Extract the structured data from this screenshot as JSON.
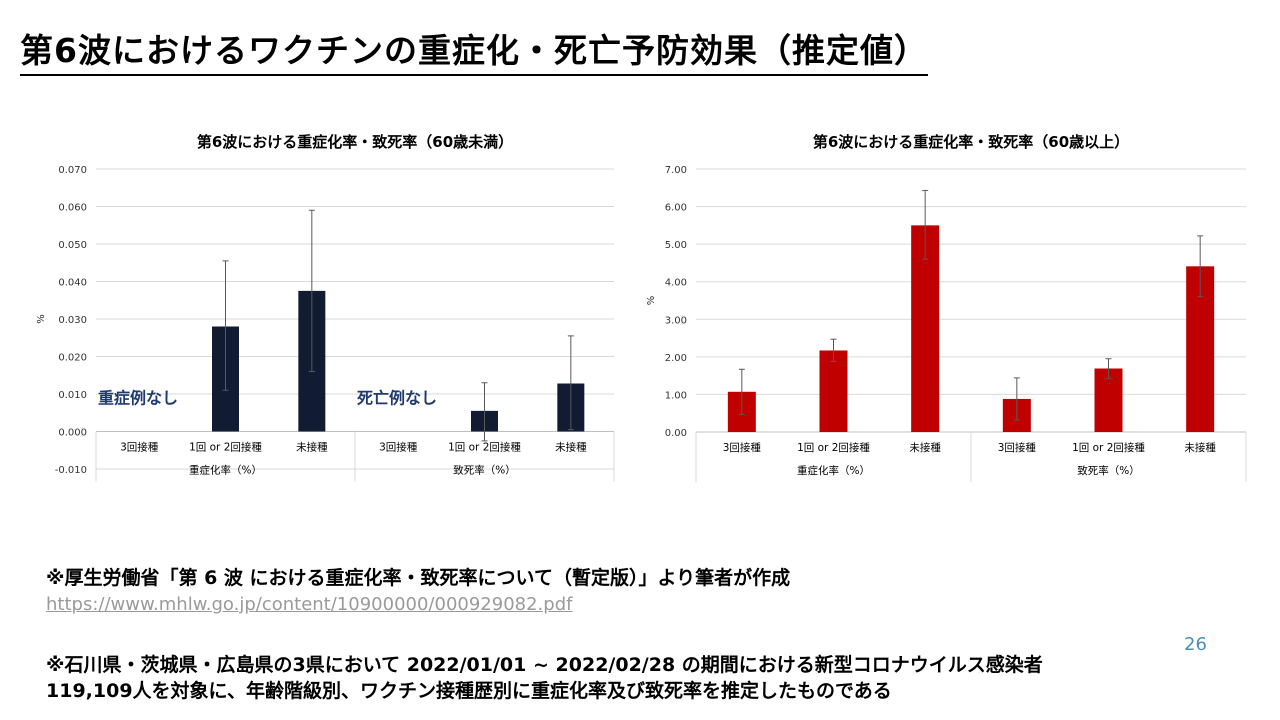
{
  "page": {
    "title": "第6波におけるワクチンの重症化・死亡予防効果（推定値）",
    "source": "※厚生労働省「第 6 波 における重症化率・致死率について（暫定版）」より筆者が作成",
    "url": "https://www.mhlw.go.jp/content/10900000/000929082.pdf",
    "page_number": "26",
    "note_line1": "※石川県・茨城県・広島県の3県において 2022/01/01 ~ 2022/02/28 の期間における新型コロナウイルス感染者",
    "note_line2": "119,109人を対象に、年齢階級別、ワクチン接種歴別に重症化率及び致死率を推定したものである"
  },
  "chart_data": [
    {
      "type": "bar",
      "title": "第6波における重症化率・致死率（60歳未満）",
      "ylabel": "%",
      "ylim": [
        -0.01,
        0.07
      ],
      "yticks": [
        "-0.010",
        "0.000",
        "0.010",
        "0.020",
        "0.030",
        "0.040",
        "0.050",
        "0.060",
        "0.070"
      ],
      "grid": true,
      "color": "#111c33",
      "groups": [
        {
          "label": "重症化率（%）",
          "categories": [
            "3回接種",
            "1回 or 2回接種",
            "未接種"
          ]
        },
        {
          "label": "致死率（%）",
          "categories": [
            "3回接種",
            "1回 or 2回接種",
            "未接種"
          ]
        }
      ],
      "values": [
        0,
        0.028,
        0.0375,
        0,
        0.0055,
        0.0128
      ],
      "error_low": [
        null,
        0.011,
        0.016,
        null,
        -0.0025,
        0.0005
      ],
      "error_high": [
        null,
        0.0455,
        0.059,
        null,
        0.013,
        0.0255
      ],
      "annotations": [
        {
          "text": "重症例なし",
          "group": 0
        },
        {
          "text": "死亡例なし",
          "group": 1
        }
      ],
      "annotation_color": "#1f3a6e"
    },
    {
      "type": "bar",
      "title": "第6波における重症化率・致死率（60歳以上）",
      "ylabel": "%",
      "ylim": [
        0,
        7
      ],
      "yticks": [
        "0.00",
        "1.00",
        "2.00",
        "3.00",
        "4.00",
        "5.00",
        "6.00",
        "7.00"
      ],
      "grid": true,
      "color": "#c00000",
      "groups": [
        {
          "label": "重症化率（%）",
          "categories": [
            "3回接種",
            "1回 or 2回接種",
            "未接種"
          ]
        },
        {
          "label": "致死率（%）",
          "categories": [
            "3回接種",
            "1回 or 2回接種",
            "未接種"
          ]
        }
      ],
      "values": [
        1.07,
        2.17,
        5.5,
        0.88,
        1.69,
        4.41
      ],
      "error_low": [
        0.47,
        1.88,
        4.6,
        0.32,
        1.43,
        3.6
      ],
      "error_high": [
        1.67,
        2.47,
        6.43,
        1.44,
        1.95,
        5.22
      ]
    }
  ]
}
